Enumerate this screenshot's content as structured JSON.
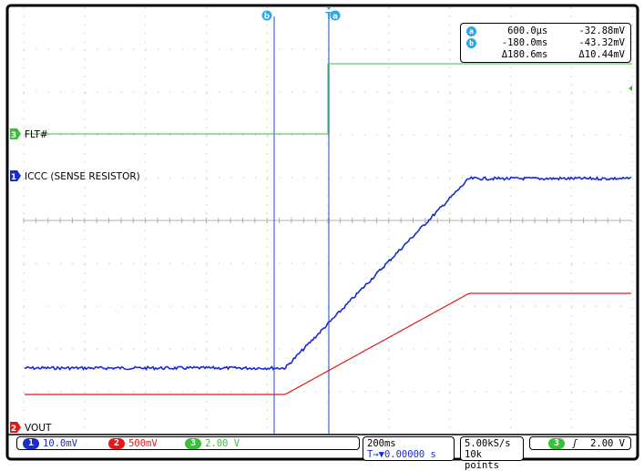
{
  "colors": {
    "ch1": "#1a2ccf",
    "ch2": "#e01b1b",
    "ch3": "#38c038",
    "cursor": "#3d6cd6",
    "cursor_label": "#2ea8e0",
    "grid": "#c8c8c8",
    "frame": "#000000"
  },
  "cursors": {
    "a": {
      "marker": "a",
      "time": "600.0µs",
      "value": "-32.88mV"
    },
    "b": {
      "marker": "b",
      "time": "-180.0ms",
      "value": "-43.32mV"
    },
    "delta": {
      "time": "Δ180.6ms",
      "value": "Δ10.44mV"
    },
    "top_markers": {
      "b": "b",
      "t": "T",
      "a": "a"
    }
  },
  "channels": {
    "ch3": {
      "num": "3",
      "label": "FLT#",
      "scale": "2.00 V"
    },
    "ch1": {
      "num": "1",
      "label": "ICCC (SENSE RESISTOR)",
      "scale": "10.0mV"
    },
    "ch2": {
      "num": "2",
      "label": "VOUT",
      "scale": "500mV"
    }
  },
  "timebase": {
    "scale": "200ms",
    "position": "T→▼0.00000 s"
  },
  "acquisition": {
    "rate": "5.00kS/s",
    "points": "10k points"
  },
  "trigger": {
    "channel": "3",
    "slope": "ʃ",
    "level": "2.00 V"
  }
}
